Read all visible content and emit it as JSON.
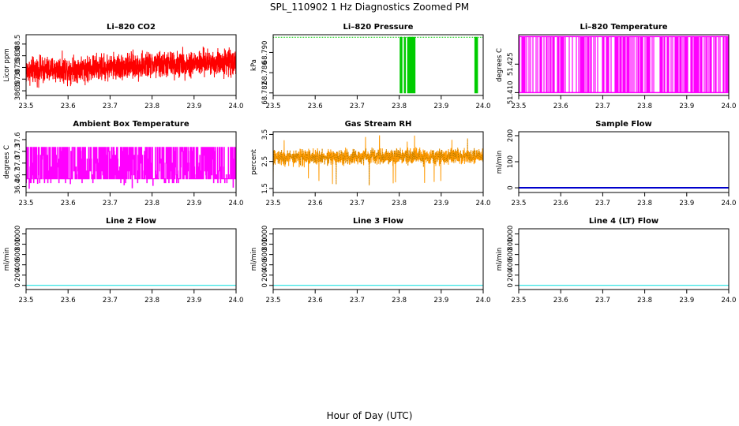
{
  "figure": {
    "title": "SPL_110902  1 Hz Diagnostics Zoomed PM",
    "xlabel": "Hour of Day (UTC)"
  },
  "chart_data": [
    {
      "type": "line",
      "title": "Li–820 CO2",
      "ylabel": "Licor ppm",
      "color": "#ff0000",
      "xlim": [
        23.5,
        24.0
      ],
      "ylim": [
        386.3,
        388.9
      ],
      "xticks": [
        "23.5",
        "23.6",
        "23.7",
        "23.8",
        "23.9",
        "24.0"
      ],
      "yticks": [
        {
          "v": 386.5,
          "label": "386.5"
        },
        {
          "v": 387.0,
          "label": "387.0"
        },
        {
          "v": 387.5,
          "label": "387.5"
        },
        {
          "v": 388.0,
          "label": "388.0"
        },
        {
          "v": 388.5,
          "label": "388.5"
        }
      ],
      "trace": {
        "style": "noise",
        "x0": 23.5,
        "x1": 24.0,
        "center_start": 387.35,
        "center_end": 387.75,
        "spread": 0.55,
        "min": 386.55,
        "max": 388.75
      }
    },
    {
      "type": "line",
      "title": "Li–820 Pressure",
      "ylabel": "kPa",
      "color": "#00cc00",
      "xlim": [
        23.5,
        24.0
      ],
      "ylim": [
        68.7815,
        68.7935
      ],
      "xticks": [
        "23.5",
        "23.6",
        "23.7",
        "23.8",
        "23.9",
        "24.0"
      ],
      "yticks": [
        {
          "v": 68.782,
          "label": "68.782"
        },
        {
          "v": 68.786,
          "label": "68.786"
        },
        {
          "v": 68.79,
          "label": "68.790"
        }
      ],
      "trace": {
        "style": "twolevel",
        "x0": 23.5,
        "x1": 24.0,
        "high": 68.793,
        "low": 68.782,
        "drops": [
          [
            23.802,
            23.807
          ],
          [
            23.812,
            23.815
          ],
          [
            23.82,
            23.838
          ],
          [
            23.98,
            23.986
          ]
        ]
      }
    },
    {
      "type": "line",
      "title": "Li–820 Temperature",
      "ylabel": "degrees C",
      "color": "#ff00ff",
      "xlim": [
        23.5,
        24.0
      ],
      "ylim": [
        51.4085,
        51.4405
      ],
      "xticks": [
        "23.5",
        "23.6",
        "23.7",
        "23.8",
        "23.9",
        "24.0"
      ],
      "yticks": [
        {
          "v": 51.41,
          "label": "51.410"
        },
        {
          "v": 51.425,
          "label": "51.425"
        }
      ],
      "trace": {
        "style": "toggle",
        "x0": 23.5,
        "x1": 24.0,
        "high": 51.4395,
        "low": 51.41,
        "density": 0.55
      }
    },
    {
      "type": "line",
      "title": "Ambient Box Temperature",
      "ylabel": "degrees C",
      "color": "#ff00ff",
      "xlim": [
        23.5,
        24.0
      ],
      "ylim": [
        36.25,
        37.8
      ],
      "xticks": [
        "23.5",
        "23.6",
        "23.7",
        "23.8",
        "23.9",
        "24.0"
      ],
      "yticks": [
        {
          "v": 36.4,
          "label": "36.4"
        },
        {
          "v": 36.7,
          "label": "36.7"
        },
        {
          "v": 37.0,
          "label": "37.0"
        },
        {
          "v": 37.3,
          "label": "37.3"
        },
        {
          "v": 37.6,
          "label": "37.6"
        }
      ],
      "trace": {
        "style": "steps",
        "x0": 23.5,
        "x1": 24.0,
        "levels": [
          36.5,
          36.6,
          36.7,
          36.8,
          36.9,
          37.0,
          37.1,
          37.2,
          37.3,
          37.4
        ],
        "weight_low": 36.6,
        "weight_high": 37.4,
        "min": 36.35,
        "max": 37.65
      }
    },
    {
      "type": "line",
      "title": "Gas Stream RH",
      "ylabel": "percent",
      "color": "#ff9900",
      "dot_color": "#8a6a00",
      "xlim": [
        23.5,
        24.0
      ],
      "ylim": [
        1.35,
        3.6
      ],
      "xticks": [
        "23.5",
        "23.6",
        "23.7",
        "23.8",
        "23.9",
        "24.0"
      ],
      "yticks": [
        {
          "v": 1.5,
          "label": "1.5"
        },
        {
          "v": 2.5,
          "label": "2.5"
        },
        {
          "v": 3.5,
          "label": "3.5"
        }
      ],
      "trace": {
        "style": "noise",
        "x0": 23.5,
        "x1": 24.0,
        "center_start": 2.65,
        "center_end": 2.7,
        "spread": 0.28,
        "min": 1.55,
        "max": 3.5,
        "spikes": 22
      }
    },
    {
      "type": "line",
      "title": "Sample Flow",
      "ylabel": "ml/min",
      "color": "#0000cc",
      "xlim": [
        23.5,
        24.0
      ],
      "ylim": [
        -18,
        215
      ],
      "xticks": [
        "23.5",
        "23.6",
        "23.7",
        "23.8",
        "23.9",
        "24.0"
      ],
      "yticks": [
        {
          "v": 0,
          "label": "0"
        },
        {
          "v": 100,
          "label": "100"
        },
        {
          "v": 200,
          "label": "200"
        }
      ],
      "trace": {
        "style": "flat",
        "x0": 23.5,
        "x1": 24.0,
        "value": 0,
        "width": 2
      }
    },
    {
      "type": "line",
      "title": "Line 2 Flow",
      "ylabel": "ml/min",
      "color": "#00dddd",
      "xlim": [
        23.5,
        24.0
      ],
      "ylim": [
        -80,
        1100
      ],
      "xticks": [
        "23.5",
        "23.6",
        "23.7",
        "23.8",
        "23.9",
        "24.0"
      ],
      "yticks": [
        {
          "v": 0,
          "label": "0"
        },
        {
          "v": 200,
          "label": "200"
        },
        {
          "v": 400,
          "label": "400"
        },
        {
          "v": 600,
          "label": "600"
        },
        {
          "v": 800,
          "label": "800"
        },
        {
          "v": 1000,
          "label": "1000"
        }
      ],
      "trace": {
        "style": "flat",
        "x0": 23.5,
        "x1": 24.0,
        "value": 0,
        "width": 1
      }
    },
    {
      "type": "line",
      "title": "Line 3 Flow",
      "ylabel": "ml/min",
      "color": "#00dddd",
      "xlim": [
        23.5,
        24.0
      ],
      "ylim": [
        -80,
        1100
      ],
      "xticks": [
        "23.5",
        "23.6",
        "23.7",
        "23.8",
        "23.9",
        "24.0"
      ],
      "yticks": [
        {
          "v": 0,
          "label": "0"
        },
        {
          "v": 200,
          "label": "200"
        },
        {
          "v": 400,
          "label": "400"
        },
        {
          "v": 600,
          "label": "600"
        },
        {
          "v": 800,
          "label": "800"
        },
        {
          "v": 1000,
          "label": "1000"
        }
      ],
      "trace": {
        "style": "flat",
        "x0": 23.5,
        "x1": 24.0,
        "value": 0,
        "width": 1
      }
    },
    {
      "type": "line",
      "title": "Line 4 (LT) Flow",
      "ylabel": "ml/min",
      "color": "#00dddd",
      "xlim": [
        23.5,
        24.0
      ],
      "ylim": [
        -80,
        1100
      ],
      "xticks": [
        "23.5",
        "23.6",
        "23.7",
        "23.8",
        "23.9",
        "24.0"
      ],
      "yticks": [
        {
          "v": 0,
          "label": "0"
        },
        {
          "v": 200,
          "label": "200"
        },
        {
          "v": 400,
          "label": "400"
        },
        {
          "v": 600,
          "label": "600"
        },
        {
          "v": 800,
          "label": "800"
        },
        {
          "v": 1000,
          "label": "1000"
        }
      ],
      "trace": {
        "style": "flat",
        "x0": 23.5,
        "x1": 24.0,
        "value": 0,
        "width": 1
      }
    }
  ]
}
